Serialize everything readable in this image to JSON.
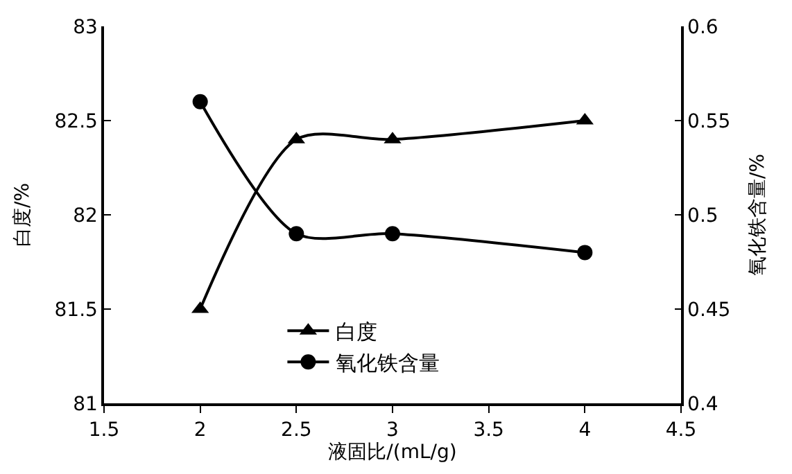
{
  "chart_data": {
    "type": "line",
    "xlabel": "液固比/(mL/g)",
    "ylabel": "白度/%",
    "y2label": "氧化铁含量/%",
    "x": [
      2,
      2.5,
      3,
      4
    ],
    "series": [
      {
        "name": "白度",
        "color": "#000000",
        "values": [
          81.5,
          82.4,
          82.4,
          82.5
        ],
        "marker": "triangle"
      },
      {
        "name": "氧化铁含量",
        "color": "#000000",
        "values": [
          0.56,
          0.49,
          0.49,
          0.48
        ],
        "marker": "circle",
        "axis": "y2"
      }
    ],
    "xlim": [
      1.5,
      4.5
    ],
    "xticks": [
      1.5,
      2,
      2.5,
      3,
      3.5,
      4,
      4.5
    ],
    "ylim": [
      81,
      83
    ],
    "yticks": [
      81,
      81.5,
      82,
      82.5,
      83
    ],
    "y2lim": [
      0.4,
      0.6
    ],
    "y2ticks": [
      0.4,
      0.45,
      0.5,
      0.55,
      0.6
    ],
    "legend": "bottom",
    "line_style": "solid"
  }
}
